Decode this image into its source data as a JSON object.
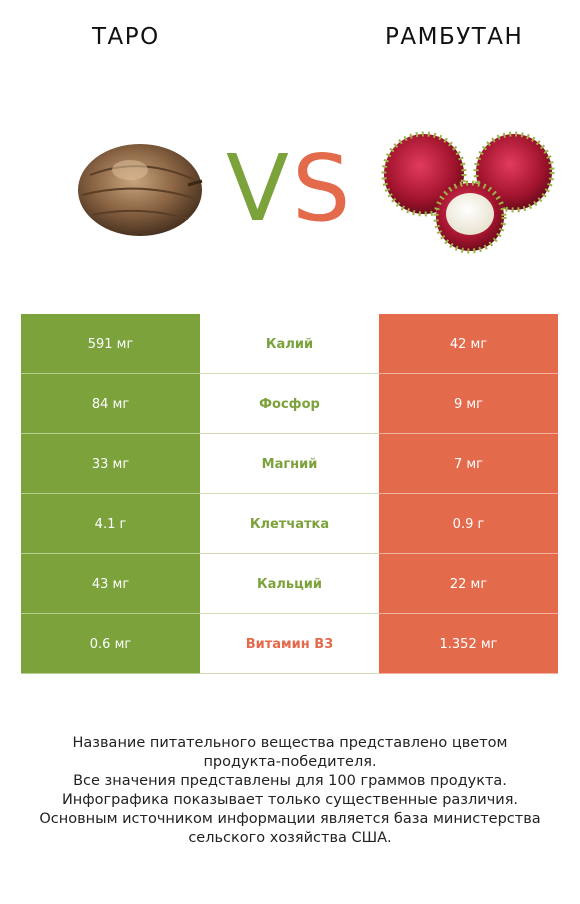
{
  "header": {
    "left_title": "ТАРО",
    "right_title": "РАМБУТАН"
  },
  "vs": {
    "v": "V",
    "s": "S",
    "v_color": "#7ba23b",
    "s_color": "#e46a4c"
  },
  "colors": {
    "left": "#7ba23b",
    "right": "#e46a4c"
  },
  "chart_data": {
    "type": "table",
    "columns": [
      "ТАРО",
      "",
      "РАМБУТАН"
    ],
    "rows": [
      {
        "nutrient": "Калий",
        "left": "591 мг",
        "right": "42 мг",
        "winner": "left"
      },
      {
        "nutrient": "Фосфор",
        "left": "84 мг",
        "right": "9 мг",
        "winner": "left"
      },
      {
        "nutrient": "Магний",
        "left": "33 мг",
        "right": "7 мг",
        "winner": "left"
      },
      {
        "nutrient": "Клетчатка",
        "left": "4.1 г",
        "right": "0.9 г",
        "winner": "left"
      },
      {
        "nutrient": "Кальций",
        "left": "43 мг",
        "right": "22 мг",
        "winner": "left"
      },
      {
        "nutrient": "Витамин B3",
        "left": "0.6 мг",
        "right": "1.352 мг",
        "winner": "right"
      }
    ]
  },
  "notes": [
    "Название питательного вещества представлено цветом",
    "продукта-победителя.",
    "Все значения представлены для 100 граммов продукта.",
    "Инфографика показывает только существенные различия.",
    "Основным источником информации является база министерства",
    "сельского хозяйства США."
  ]
}
